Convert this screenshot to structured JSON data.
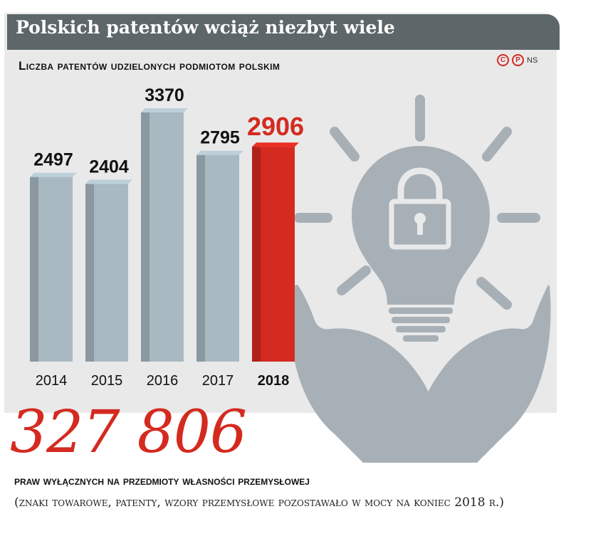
{
  "header": {
    "title": "Polskich patentów wciąż niezbyt wiele",
    "credit": "NS"
  },
  "subtitle": "Liczba patentów udzielonych podmiotom polskim",
  "chart_data": {
    "type": "bar",
    "categories": [
      "2014",
      "2015",
      "2016",
      "2017",
      "2018"
    ],
    "values": [
      2497,
      2404,
      3370,
      2795,
      2906
    ],
    "highlight_index": 4,
    "title": "Liczba patentów udzielonych podmiotom polskim",
    "xlabel": "",
    "ylabel": "",
    "grid": false,
    "colors": {
      "bar": "#a9b9c2",
      "highlight": "#d42a20",
      "text": "#111111"
    }
  },
  "summary": {
    "value": "327 806",
    "caption_line1": "praw wyłącznych na przedmioty własności przemysłowej",
    "caption_line2": "(znaki towarowe, patenty, wzory przemysłowe pozostawało w mocy na koniec 2018 r.)"
  },
  "illustration": {
    "icons": [
      "lightbulb-icon",
      "padlock-icon",
      "hands-icon"
    ],
    "color": "#a7b0b6"
  }
}
